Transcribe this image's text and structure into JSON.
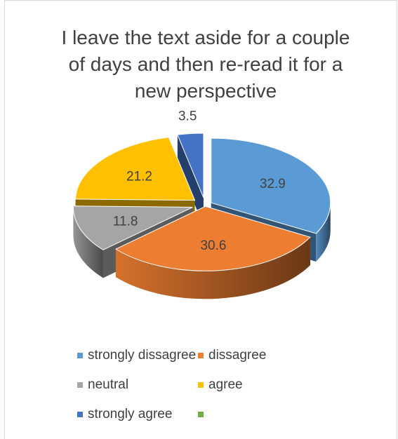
{
  "chart_data": {
    "type": "pie",
    "title": "I leave the text aside for a couple\nof days and then re-read it for a\nnew perspective",
    "categories": [
      "strongly dissagree",
      "dissagree",
      "neutral",
      "agree",
      "strongly agree",
      ""
    ],
    "values": [
      32.9,
      30.6,
      11.8,
      21.2,
      3.5,
      0
    ],
    "data_labels": [
      "32.9",
      "30.6",
      "11.8",
      "21.2",
      "3.5",
      ""
    ],
    "colors": [
      "#5b9bd5",
      "#ed7d31",
      "#a5a5a5",
      "#ffc000",
      "#4472c4",
      "#70ad47"
    ],
    "legend_position": "bottom",
    "style": "3d-pie-exploded"
  }
}
